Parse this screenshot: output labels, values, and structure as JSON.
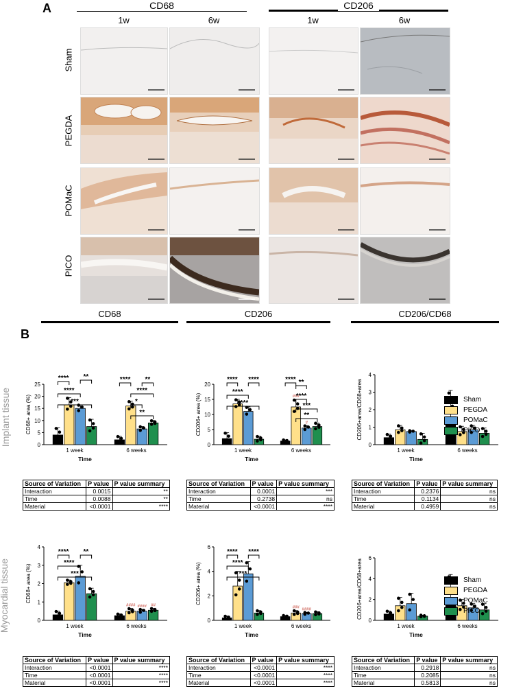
{
  "panelA": {
    "letter": "A",
    "markers": [
      "CD68",
      "CD206"
    ],
    "times": [
      "1w",
      "6w",
      "1w",
      "6w"
    ],
    "rows": [
      "Sham",
      "PEGDA",
      "POMaC",
      "PICO"
    ]
  },
  "panelB": {
    "letter": "B",
    "section_titles": [
      "CD68",
      "CD206",
      "CD206/CD68"
    ],
    "tissue_labels": [
      "Implant tissue",
      "Myocardial tissue"
    ],
    "legend": {
      "items": [
        {
          "label": "Sham",
          "color": "#000000"
        },
        {
          "label": "PEGDA",
          "color": "#FFE08A"
        },
        {
          "label": "POMaC",
          "color": "#5B9BD5"
        },
        {
          "label": "PICO",
          "color": "#1F8F4E"
        }
      ]
    },
    "stats_header": [
      "Source of Variation",
      "P value",
      "P value summary"
    ],
    "stats_tables": [
      [
        [
          "Interaction",
          "0.0015",
          "**"
        ],
        [
          "Time",
          "0.0088",
          "**"
        ],
        [
          "Material",
          "<0.0001",
          "****"
        ]
      ],
      [
        [
          "Interaction",
          "0.0001",
          "***"
        ],
        [
          "Time",
          "0.2738",
          "ns"
        ],
        [
          "Material",
          "<0.0001",
          "****"
        ]
      ],
      [
        [
          "Interaction",
          "0.2376",
          "ns"
        ],
        [
          "Time",
          "0.1134",
          "ns"
        ],
        [
          "Material",
          "0.4959",
          "ns"
        ]
      ],
      [
        [
          "Interaction",
          "<0.0001",
          "****"
        ],
        [
          "Time",
          "<0.0001",
          "****"
        ],
        [
          "Material",
          "<0.0001",
          "****"
        ]
      ],
      [
        [
          "Interaction",
          "<0.0001",
          "****"
        ],
        [
          "Time",
          "<0.0001",
          "****"
        ],
        [
          "Material",
          "<0.0001",
          "****"
        ]
      ],
      [
        [
          "Interaction",
          "0.2918",
          "ns"
        ],
        [
          "Time",
          "0.2085",
          "ns"
        ],
        [
          "Material",
          "0.5813",
          "ns"
        ]
      ]
    ]
  },
  "chart_data": [
    {
      "type": "bar",
      "ylabel": "CD68+ area (%)",
      "xlabel": "Time",
      "categories": [
        "1 week",
        "6 weeks"
      ],
      "ylim": [
        0,
        25
      ],
      "yticks": [
        0,
        5,
        10,
        15,
        20,
        25
      ],
      "series": [
        {
          "name": "Sham",
          "values": [
            4,
            2
          ],
          "err": [
            3,
            1.5
          ]
        },
        {
          "name": "PEGDA",
          "values": [
            16.5,
            16
          ],
          "err": [
            3,
            2
          ]
        },
        {
          "name": "POMaC",
          "values": [
            15,
            6.5
          ],
          "err": [
            1.5,
            1
          ]
        },
        {
          "name": "PICO",
          "values": [
            7.5,
            9
          ],
          "err": [
            3,
            1
          ]
        }
      ],
      "sig": [
        "****",
        "**",
        "****",
        "***",
        "****",
        "**",
        "****",
        "*",
        "**"
      ],
      "hash": [
        "",
        "",
        "",
        ""
      ]
    },
    {
      "type": "bar",
      "ylabel": "CD206+ area (%)",
      "xlabel": "Time",
      "categories": [
        "1 week",
        "6 weeks"
      ],
      "ylim": [
        0,
        20
      ],
      "yticks": [
        0,
        5,
        10,
        15,
        20
      ],
      "series": [
        {
          "name": "Sham",
          "values": [
            2,
            1.2
          ],
          "err": [
            2,
            0.4
          ]
        },
        {
          "name": "PEGDA",
          "values": [
            13.5,
            12.5
          ],
          "err": [
            1.5,
            2.5
          ]
        },
        {
          "name": "POMaC",
          "values": [
            11,
            5.5
          ],
          "err": [
            1.5,
            0.8
          ]
        },
        {
          "name": "PICO",
          "values": [
            1.8,
            6
          ],
          "err": [
            1,
            1.2
          ]
        }
      ],
      "sig": [
        "****",
        "****",
        "****",
        "****",
        "****",
        "****",
        "**",
        "***",
        "**"
      ],
      "hash": [
        "",
        "###",
        "#",
        ""
      ]
    },
    {
      "type": "bar",
      "ylabel": "CD206+area/CD68+area",
      "xlabel": "Time",
      "categories": [
        "1 week",
        "6 weeks"
      ],
      "ylim": [
        0,
        4
      ],
      "yticks": [
        0,
        1,
        2,
        3,
        4
      ],
      "series": [
        {
          "name": "Sham",
          "values": [
            0.4,
            1.6
          ],
          "err": [
            0.2,
            1.5
          ]
        },
        {
          "name": "PEGDA",
          "values": [
            0.85,
            0.75
          ],
          "err": [
            0.25,
            0.3
          ]
        },
        {
          "name": "POMaC",
          "values": [
            0.75,
            0.85
          ],
          "err": [
            0.05,
            0.25
          ]
        },
        {
          "name": "PICO",
          "values": [
            0.3,
            0.65
          ],
          "err": [
            0.35,
            0.3
          ]
        }
      ],
      "sig": [],
      "hash": [
        "",
        "",
        "",
        ""
      ]
    },
    {
      "type": "bar",
      "ylabel": "CD68+ area (%)",
      "xlabel": "Time",
      "categories": [
        "1 week",
        "6 weeks"
      ],
      "ylim": [
        0,
        4
      ],
      "yticks": [
        0,
        1,
        2,
        3,
        4
      ],
      "series": [
        {
          "name": "Sham",
          "values": [
            0.3,
            0.25
          ],
          "err": [
            0.2,
            0.1
          ]
        },
        {
          "name": "PEGDA",
          "values": [
            2.05,
            0.5
          ],
          "err": [
            0.15,
            0.15
          ]
        },
        {
          "name": "POMaC",
          "values": [
            2.4,
            0.5
          ],
          "err": [
            0.6,
            0.1
          ]
        },
        {
          "name": "PICO",
          "values": [
            1.45,
            0.55
          ],
          "err": [
            0.3,
            0.1
          ]
        }
      ],
      "sig": [
        "****",
        "**",
        "****",
        "***"
      ],
      "hash": [
        "",
        "####",
        "####",
        "##"
      ]
    },
    {
      "type": "bar",
      "ylabel": "CD206+ area (%)",
      "xlabel": "Time",
      "categories": [
        "1 week",
        "6 weeks"
      ],
      "ylim": [
        0,
        6
      ],
      "yticks": [
        0,
        2,
        4,
        6
      ],
      "series": [
        {
          "name": "Sham",
          "values": [
            0.2,
            0.3
          ],
          "err": [
            0.15,
            0.1
          ]
        },
        {
          "name": "PEGDA",
          "values": [
            2.8,
            0.6
          ],
          "err": [
            1.2,
            0.2
          ]
        },
        {
          "name": "POMaC",
          "values": [
            3.8,
            0.55
          ],
          "err": [
            1.0,
            0.1
          ]
        },
        {
          "name": "PICO",
          "values": [
            0.6,
            0.55
          ],
          "err": [
            0.2,
            0.15
          ]
        }
      ],
      "sig": [
        "****",
        "****",
        "****",
        "***"
      ],
      "hash": [
        "",
        "###",
        "####",
        ""
      ]
    },
    {
      "type": "bar",
      "ylabel": "CD206+area/CD68+area",
      "xlabel": "Time",
      "categories": [
        "1 week",
        "6 weeks"
      ],
      "ylim": [
        0,
        6
      ],
      "yticks": [
        0,
        2,
        4,
        6
      ],
      "series": [
        {
          "name": "Sham",
          "values": [
            0.6,
            2.2
          ],
          "err": [
            0.3,
            2.2
          ]
        },
        {
          "name": "PEGDA",
          "values": [
            1.4,
            1.4
          ],
          "err": [
            0.8,
            0.6
          ]
        },
        {
          "name": "POMaC",
          "values": [
            1.6,
            1.2
          ],
          "err": [
            1.0,
            0.4
          ]
        },
        {
          "name": "PICO",
          "values": [
            0.4,
            1.0
          ],
          "err": [
            0.1,
            0.6
          ]
        }
      ],
      "sig": [],
      "hash": [
        "",
        "",
        "",
        ""
      ]
    }
  ]
}
